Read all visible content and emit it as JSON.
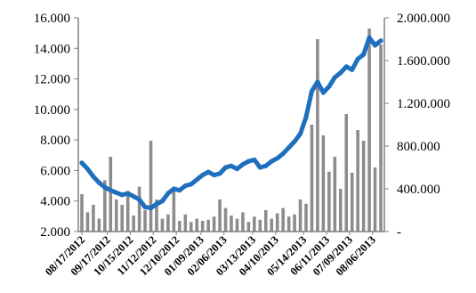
{
  "chart_data": {
    "type": "line",
    "title": "",
    "xlabel": "",
    "ylabel": "",
    "y2label": "",
    "legend": "none",
    "grid": false,
    "x_tick_labels": [
      "08/17/2012",
      "09/17/2012",
      "10/15/2012",
      "11/12/2012",
      "12/10/2012",
      "01/09/2013",
      "02/06/2013",
      "03/13/2013",
      "04/10/2013",
      "05/14/2013",
      "06/11/2013",
      "07/09/2013",
      "08/06/2013"
    ],
    "left_axis": {
      "ylim": [
        2000,
        16000
      ],
      "tick_values": [
        2000,
        4000,
        6000,
        8000,
        10000,
        12000,
        14000,
        16000
      ],
      "tick_labels": [
        "2.000",
        "4.000",
        "6.000",
        "8.000",
        "10.000",
        "12.000",
        "14.000",
        "16.000"
      ]
    },
    "right_axis": {
      "ylim": [
        0,
        2000000
      ],
      "tick_values": [
        0,
        400000,
        800000,
        1200000,
        1600000,
        2000000
      ],
      "tick_labels": [
        "-",
        "400.000",
        "800.000",
        "1.200.000",
        "1.600.000",
        "2.000.000"
      ]
    },
    "colors": {
      "line": "#1f6fbf",
      "bars": "#8c8c8c",
      "axis": "#808080"
    },
    "series": [
      {
        "type": "line",
        "axis": "left",
        "color": "#1f6fbf",
        "x": [
          "08/17/2012",
          "08/24/2012",
          "08/31/2012",
          "09/07/2012",
          "09/14/2012",
          "09/21/2012",
          "09/28/2012",
          "10/05/2012",
          "10/12/2012",
          "10/19/2012",
          "10/26/2012",
          "11/02/2012",
          "11/09/2012",
          "11/16/2012",
          "11/23/2012",
          "11/30/2012",
          "12/07/2012",
          "12/14/2012",
          "12/21/2012",
          "12/28/2012",
          "01/04/2013",
          "01/11/2013",
          "01/18/2013",
          "01/25/2013",
          "02/01/2013",
          "02/08/2013",
          "02/15/2013",
          "02/22/2013",
          "03/01/2013",
          "03/08/2013",
          "03/15/2013",
          "03/22/2013",
          "03/29/2013",
          "04/05/2013",
          "04/12/2013",
          "04/19/2013",
          "04/26/2013",
          "05/03/2013",
          "05/10/2013",
          "05/17/2013",
          "05/24/2013",
          "05/31/2013",
          "06/07/2013",
          "06/14/2013",
          "06/21/2013",
          "06/28/2013",
          "07/05/2013",
          "07/12/2013",
          "07/19/2013",
          "07/26/2013",
          "08/02/2013",
          "08/09/2013",
          "08/16/2013"
        ],
        "values": [
          6500,
          6100,
          5600,
          5200,
          4900,
          4700,
          4550,
          4400,
          4500,
          4300,
          4100,
          3600,
          3550,
          3800,
          4000,
          4500,
          4800,
          4700,
          5000,
          5100,
          5400,
          5700,
          5900,
          5700,
          5800,
          6200,
          6300,
          6100,
          6400,
          6600,
          6700,
          6200,
          6300,
          6600,
          6800,
          7100,
          7500,
          7900,
          8400,
          9500,
          11200,
          11800,
          11100,
          11500,
          12100,
          12400,
          12800,
          12600,
          13300,
          13600,
          14700,
          14200,
          14500
        ]
      },
      {
        "type": "bar",
        "axis": "right",
        "color": "#8c8c8c",
        "x": [
          "08/17/2012",
          "08/24/2012",
          "08/31/2012",
          "09/07/2012",
          "09/14/2012",
          "09/21/2012",
          "09/28/2012",
          "10/05/2012",
          "10/12/2012",
          "10/19/2012",
          "10/26/2012",
          "11/02/2012",
          "11/09/2012",
          "11/16/2012",
          "11/23/2012",
          "11/30/2012",
          "12/07/2012",
          "12/14/2012",
          "12/21/2012",
          "12/28/2012",
          "01/04/2013",
          "01/11/2013",
          "01/18/2013",
          "01/25/2013",
          "02/01/2013",
          "02/08/2013",
          "02/15/2013",
          "02/22/2013",
          "03/01/2013",
          "03/08/2013",
          "03/15/2013",
          "03/22/2013",
          "03/29/2013",
          "04/05/2013",
          "04/12/2013",
          "04/19/2013",
          "04/26/2013",
          "05/03/2013",
          "05/10/2013",
          "05/17/2013",
          "05/24/2013",
          "05/31/2013",
          "06/07/2013",
          "06/14/2013",
          "06/21/2013",
          "06/28/2013",
          "07/05/2013",
          "07/12/2013",
          "07/19/2013",
          "07/26/2013",
          "08/02/2013",
          "08/09/2013",
          "08/16/2013"
        ],
        "values": [
          350000,
          180000,
          250000,
          120000,
          480000,
          700000,
          300000,
          250000,
          380000,
          150000,
          420000,
          200000,
          850000,
          300000,
          120000,
          160000,
          380000,
          100000,
          160000,
          90000,
          120000,
          100000,
          110000,
          140000,
          300000,
          220000,
          150000,
          120000,
          180000,
          90000,
          140000,
          110000,
          200000,
          120000,
          170000,
          220000,
          140000,
          160000,
          300000,
          260000,
          1000000,
          1800000,
          900000,
          560000,
          700000,
          400000,
          1100000,
          550000,
          950000,
          850000,
          1900000,
          600000,
          1750000
        ]
      }
    ]
  }
}
